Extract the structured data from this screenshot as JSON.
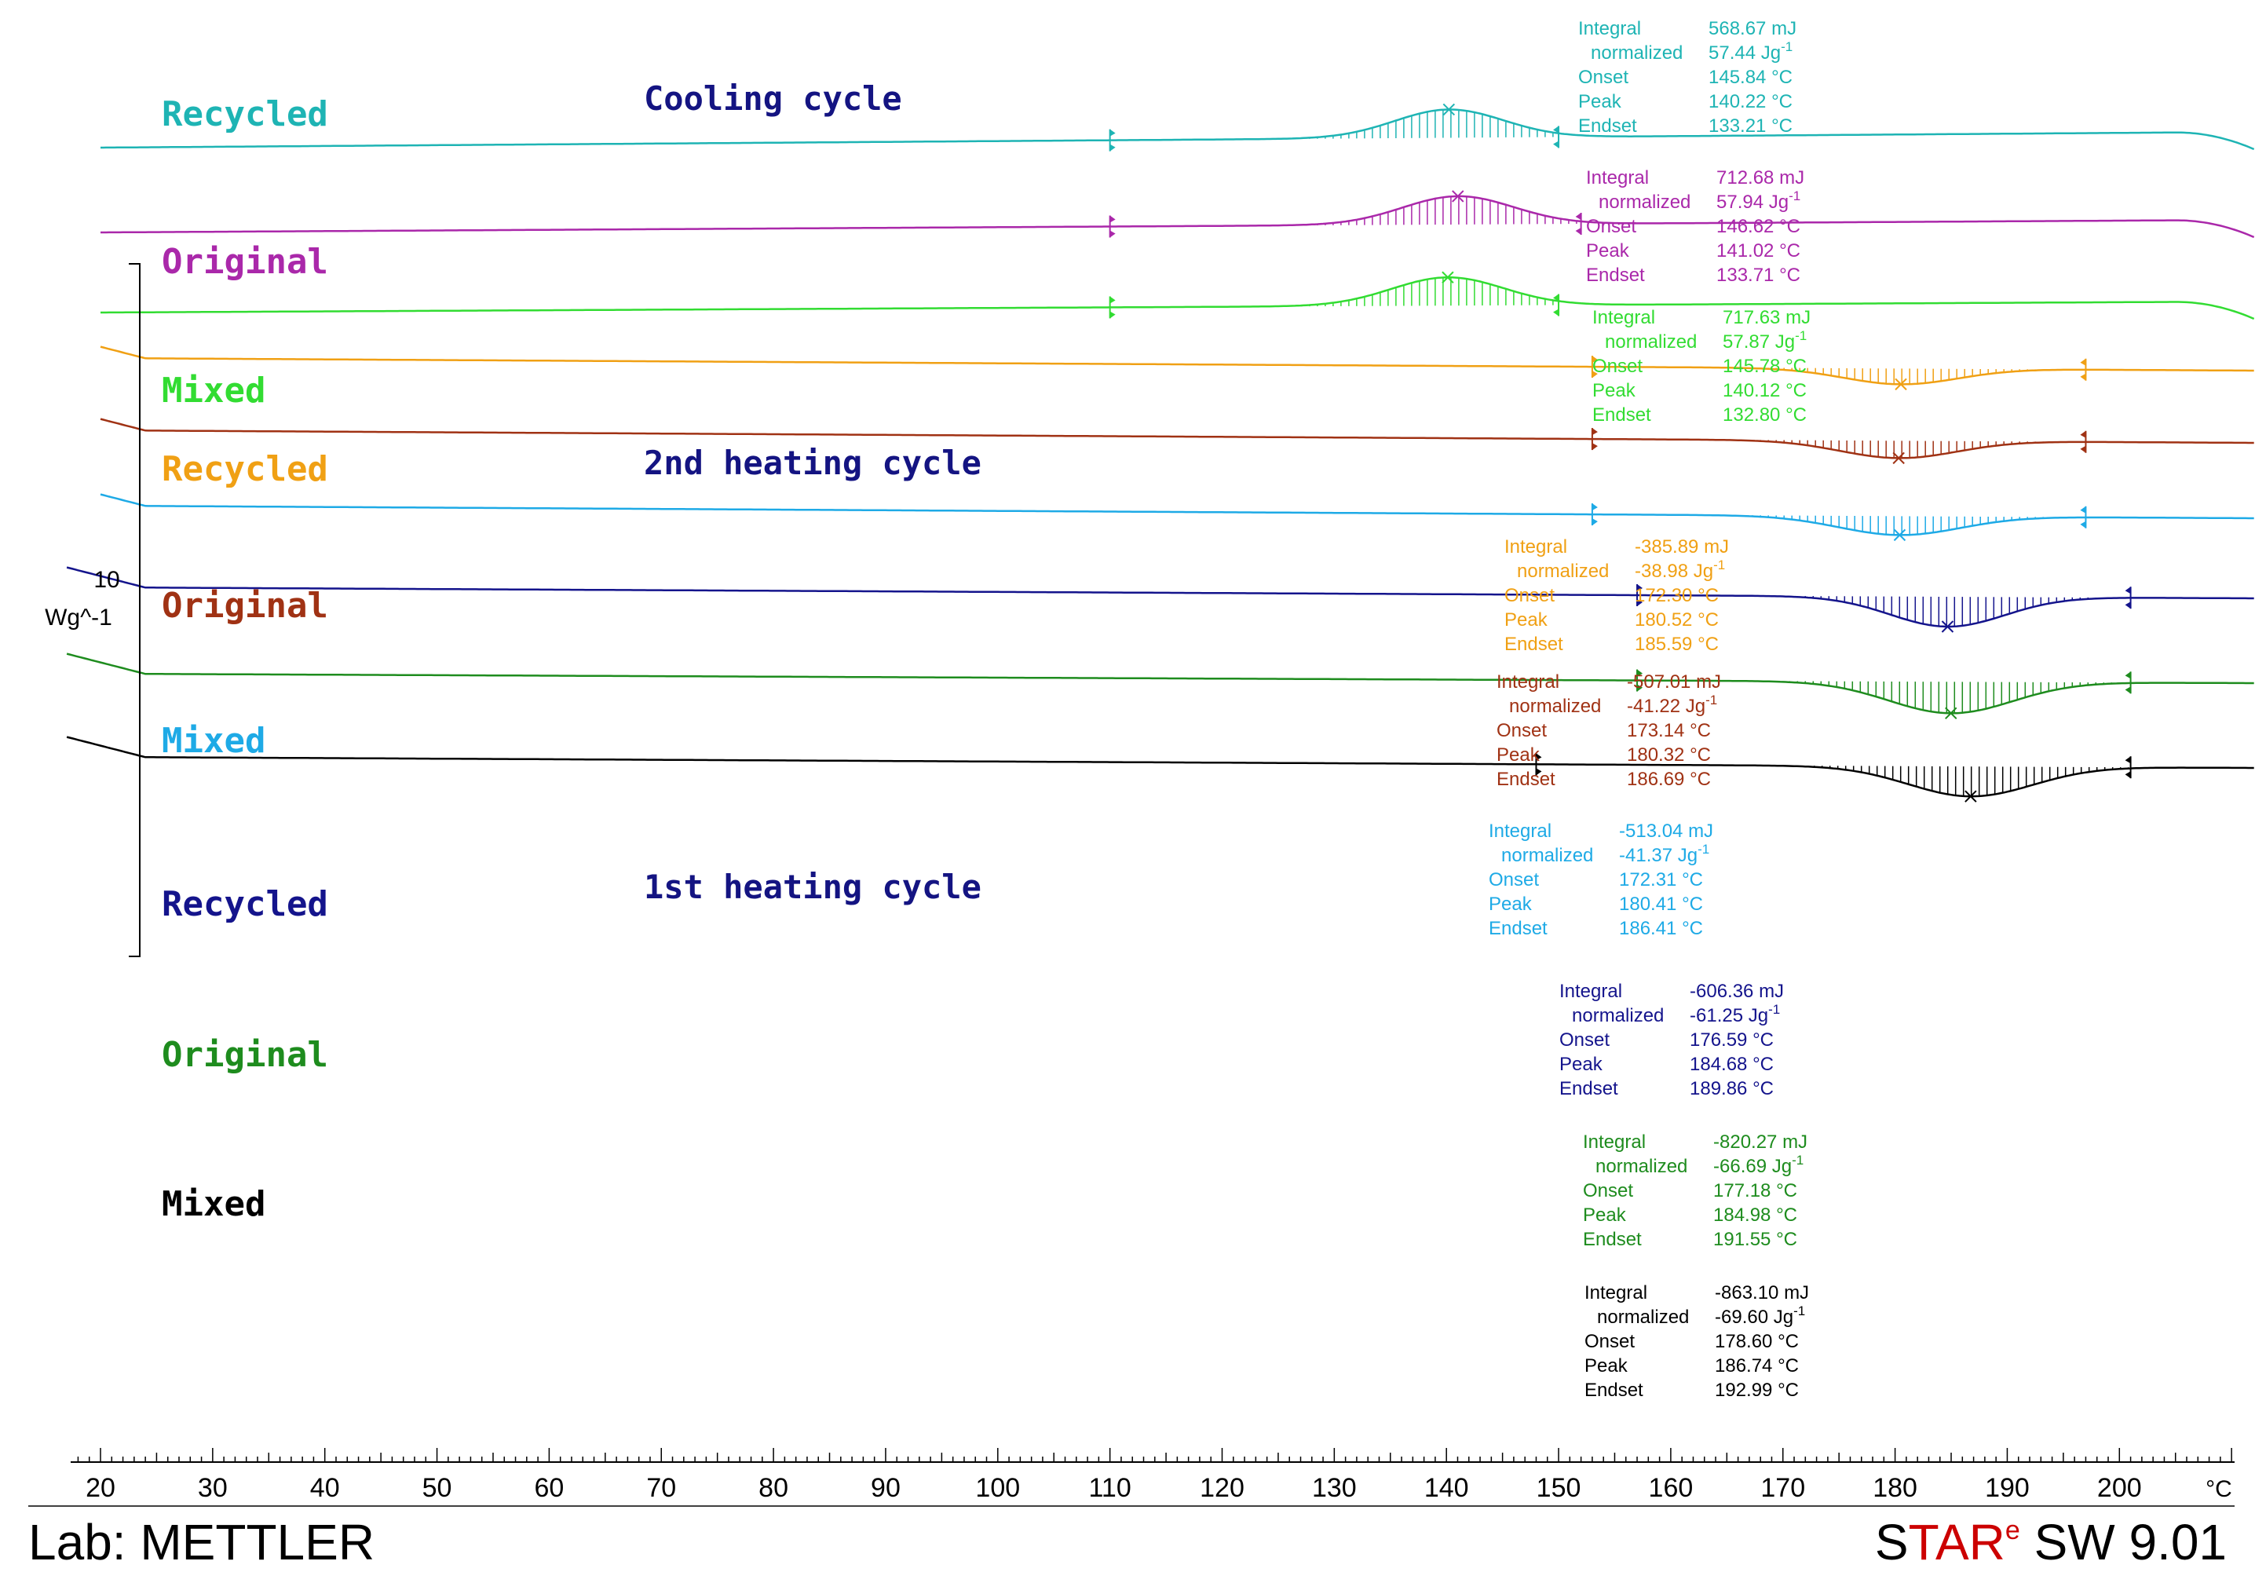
{
  "chart_data": {
    "type": "line",
    "title": "",
    "xlabel": "°C",
    "x_unit": "°C",
    "xlim": [
      17,
      213
    ],
    "x_ticks": [
      20,
      30,
      40,
      50,
      60,
      70,
      80,
      90,
      100,
      110,
      120,
      130,
      140,
      150,
      160,
      170,
      180,
      190,
      200
    ],
    "y_scale_bar": {
      "value": "10",
      "unit": "Wg^-1"
    },
    "sections": [
      {
        "key": "cooling",
        "label": "Cooling cycle"
      },
      {
        "key": "heating2",
        "label": "2nd heating cycle"
      },
      {
        "key": "heating1",
        "label": "1st heating cycle"
      }
    ],
    "series": [
      {
        "name": "Recycled",
        "section": "cooling",
        "color": "#1eb4b4",
        "x_start": 20,
        "x_end": 212,
        "baseline": [
          100.0,
          1.0
        ],
        "peak": {
          "direction": "exo",
          "onset": 145.84,
          "peak": 140.22,
          "endset": 133.21,
          "limits": [
            110,
            150
          ],
          "height": 1.8
        },
        "results": [
          {
            "label": "Integral",
            "value": "568.67 mJ"
          },
          {
            "label": "normalized",
            "value": "57.44 Jg",
            "sup": "-1"
          },
          {
            "label": "Onset",
            "value": "145.84 °C"
          },
          {
            "label": "Peak",
            "value": "140.22 °C"
          },
          {
            "label": "Endset",
            "value": "133.21 °C"
          }
        ]
      },
      {
        "name": "Original",
        "section": "cooling",
        "color": "#aa28aa",
        "x_start": 20,
        "x_end": 212,
        "baseline": [
          94.6,
          0.8
        ],
        "peak": {
          "direction": "exo",
          "onset": 146.62,
          "peak": 141.02,
          "endset": 133.71,
          "limits": [
            110,
            152
          ],
          "height": 1.8
        },
        "results": [
          {
            "label": "Integral",
            "value": "712.68 mJ"
          },
          {
            "label": "normalized",
            "value": "57.94 Jg",
            "sup": "-1"
          },
          {
            "label": "Onset",
            "value": "146.62 °C"
          },
          {
            "label": "Peak",
            "value": "141.02 °C"
          },
          {
            "label": "Endset",
            "value": "133.71 °C"
          }
        ]
      },
      {
        "name": "Mixed",
        "section": "cooling",
        "color": "#32dc32",
        "x_start": 20,
        "x_end": 212,
        "baseline": [
          89.5,
          0.7
        ],
        "peak": {
          "direction": "exo",
          "onset": 145.78,
          "peak": 140.12,
          "endset": 132.8,
          "limits": [
            110,
            150
          ],
          "height": 1.8
        },
        "results": [
          {
            "label": "Integral",
            "value": "717.63 mJ"
          },
          {
            "label": "normalized",
            "value": "57.87 Jg",
            "sup": "-1"
          },
          {
            "label": "Onset",
            "value": "145.78 °C"
          },
          {
            "label": "Peak",
            "value": "140.12 °C"
          },
          {
            "label": "Endset",
            "value": "132.80 °C"
          }
        ]
      },
      {
        "name": "Recycled",
        "section": "heating2",
        "color": "#f0a014",
        "x_start": 20,
        "x_end": 212,
        "baseline": [
          86.6,
          -0.8
        ],
        "peak": {
          "direction": "endo",
          "onset": 172.3,
          "peak": 180.52,
          "endset": 185.59,
          "limits": [
            153,
            197
          ],
          "height": 1.0
        },
        "results": [
          {
            "label": "Integral",
            "value": "-385.89 mJ"
          },
          {
            "label": "normalized",
            "value": "-38.98 Jg",
            "sup": "-1"
          },
          {
            "label": "Onset",
            "value": "172.30 °C"
          },
          {
            "label": "Peak",
            "value": "180.52 °C"
          },
          {
            "label": "Endset",
            "value": "185.59 °C"
          }
        ]
      },
      {
        "name": "Original",
        "section": "heating2",
        "color": "#a03214",
        "x_start": 20,
        "x_end": 212,
        "baseline": [
          82.0,
          -0.8
        ],
        "peak": {
          "direction": "endo",
          "onset": 173.14,
          "peak": 180.32,
          "endset": 186.69,
          "limits": [
            153,
            197
          ],
          "height": 1.1
        },
        "results": [
          {
            "label": "Integral",
            "value": "-507.01 mJ"
          },
          {
            "label": "normalized",
            "value": "-41.22 Jg",
            "sup": "-1"
          },
          {
            "label": "Onset",
            "value": "173.14 °C"
          },
          {
            "label": "Peak",
            "value": "180.32 °C"
          },
          {
            "label": "Endset",
            "value": "186.69 °C"
          }
        ]
      },
      {
        "name": "Mixed",
        "section": "heating2",
        "color": "#1eaae6",
        "x_start": 20,
        "x_end": 212,
        "baseline": [
          77.2,
          -0.8
        ],
        "peak": {
          "direction": "endo",
          "onset": 172.31,
          "peak": 180.41,
          "endset": 186.41,
          "limits": [
            153,
            197
          ],
          "height": 1.2
        },
        "results": [
          {
            "label": "Integral",
            "value": "-513.04 mJ"
          },
          {
            "label": "normalized",
            "value": "-41.37 Jg",
            "sup": "-1"
          },
          {
            "label": "Onset",
            "value": "172.31 °C"
          },
          {
            "label": "Peak",
            "value": "180.41 °C"
          },
          {
            "label": "Endset",
            "value": "186.41 °C"
          }
        ]
      },
      {
        "name": "Recycled",
        "section": "heating1",
        "color": "#14148c",
        "x_start": 17,
        "x_end": 212,
        "baseline": [
          72.0,
          -0.7
        ],
        "peak": {
          "direction": "endo",
          "onset": 176.59,
          "peak": 184.68,
          "endset": 189.86,
          "limits": [
            157,
            201
          ],
          "height": 1.9
        },
        "results": [
          {
            "label": "Integral",
            "value": "-606.36 mJ"
          },
          {
            "label": "normalized",
            "value": "-61.25 Jg",
            "sup": "-1"
          },
          {
            "label": "Onset",
            "value": "176.59 °C"
          },
          {
            "label": "Peak",
            "value": "184.68 °C"
          },
          {
            "label": "Endset",
            "value": "189.86 °C"
          }
        ]
      },
      {
        "name": "Original",
        "section": "heating1",
        "color": "#1e8c1e",
        "x_start": 17,
        "x_end": 212,
        "baseline": [
          66.5,
          -0.6
        ],
        "peak": {
          "direction": "endo",
          "onset": 177.18,
          "peak": 184.98,
          "endset": 191.55,
          "limits": [
            157,
            201
          ],
          "height": 2.0
        },
        "results": [
          {
            "label": "Integral",
            "value": "-820.27 mJ"
          },
          {
            "label": "normalized",
            "value": "-66.69 Jg",
            "sup": "-1"
          },
          {
            "label": "Onset",
            "value": "177.18 °C"
          },
          {
            "label": "Peak",
            "value": "184.98 °C"
          },
          {
            "label": "Endset",
            "value": "191.55 °C"
          }
        ]
      },
      {
        "name": "Mixed",
        "section": "heating1",
        "color": "#000000",
        "x_start": 17,
        "x_end": 212,
        "baseline": [
          61.2,
          -0.7
        ],
        "peak": {
          "direction": "endo",
          "onset": 178.6,
          "peak": 186.74,
          "endset": 192.99,
          "limits": [
            148,
            201
          ],
          "height": 1.9
        },
        "results": [
          {
            "label": "Integral",
            "value": "-863.10 mJ"
          },
          {
            "label": "normalized",
            "value": "-69.60 Jg",
            "sup": "-1"
          },
          {
            "label": "Onset",
            "value": "178.60 °C"
          },
          {
            "label": "Peak",
            "value": "186.74 °C"
          },
          {
            "label": "Endset",
            "value": "192.99 °C"
          }
        ]
      }
    ]
  },
  "footer": {
    "lab_label": "Lab: METTLER",
    "software_prefix_1": "S",
    "software_prefix_2": "TAR",
    "software_sup": "e",
    "software_suffix": " SW 9.01",
    "color_black": "#000000",
    "color_red": "#cc0000"
  }
}
